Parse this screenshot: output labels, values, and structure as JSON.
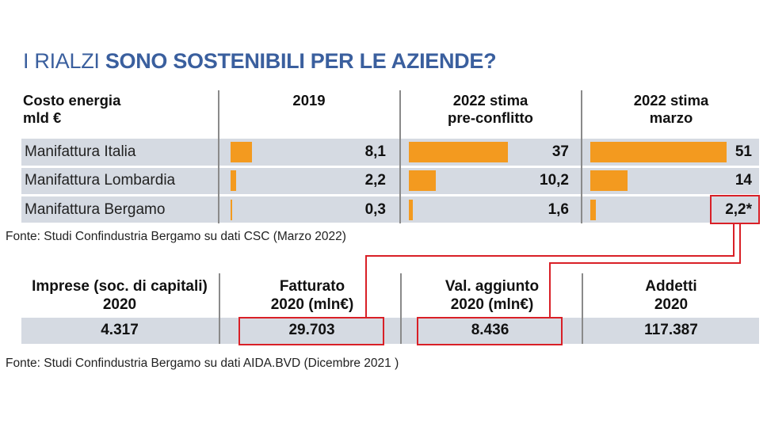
{
  "title": {
    "light": "I RIALZI",
    "bold": "SONO SOSTENIBILI PER LE AZIENDE?"
  },
  "table1": {
    "header_label_line1": "Costo energia",
    "header_label_line2": "mld €",
    "col_headers": [
      {
        "line1": "2019",
        "line2": ""
      },
      {
        "line1": "2022 stima",
        "line2": "pre-conflitto"
      },
      {
        "line1": "2022 stima",
        "line2": "marzo"
      }
    ],
    "source": "Fonte: Studi Confindustria Bergamo su dati CSC (Marzo 2022)"
  },
  "table2": {
    "headers": [
      {
        "line1": "Imprese (soc. di capitali)",
        "line2": "2020"
      },
      {
        "line1": "Fatturato",
        "line2": "2020 (mln€)"
      },
      {
        "line1": "Val. aggiunto",
        "line2": "2020 (mln€)"
      },
      {
        "line1": "Addetti",
        "line2": "2020"
      }
    ],
    "values": [
      "4.317",
      "29.703",
      "8.436",
      "117.387"
    ],
    "highlighted_values": [
      "29.703",
      "8.436"
    ],
    "source": "Fonte: Studi Confindustria Bergamo su dati AIDA.BVD (Dicembre 2021 )"
  },
  "colors": {
    "title_blue": "#3a5f9e",
    "bar_orange": "#f39a1f",
    "row_bg": "#d5dae2",
    "highlight_red": "#d92027"
  },
  "chart_data": {
    "type": "bar",
    "title": "Costo energia mld €",
    "categories": [
      "Manifattura Italia",
      "Manifattura Lombardia",
      "Manifattura Bergamo"
    ],
    "series": [
      {
        "name": "2019",
        "values": [
          8.1,
          2.2,
          0.3
        ],
        "labels": [
          "8,1",
          "2,2",
          "0,3"
        ]
      },
      {
        "name": "2022 stima pre-conflitto",
        "values": [
          37,
          10.2,
          1.6
        ],
        "labels": [
          "37",
          "10,2",
          "1,6"
        ]
      },
      {
        "name": "2022 stima marzo",
        "values": [
          51,
          14,
          2.2
        ],
        "labels": [
          "51",
          "14",
          "2,2*"
        ]
      }
    ],
    "xlabel": "",
    "ylabel": "mld €",
    "xlim": [
      0,
      51
    ],
    "highlighted": {
      "series": "2022 stima marzo",
      "category": "Manifattura Bergamo",
      "label": "2,2*"
    }
  }
}
